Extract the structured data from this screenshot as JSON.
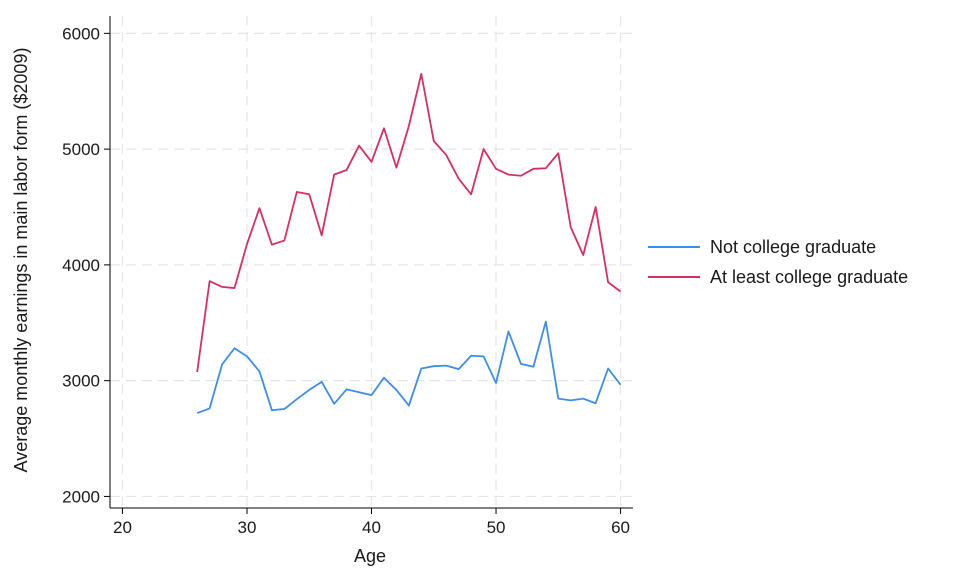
{
  "chart_data": {
    "type": "line",
    "xlabel": "Age",
    "ylabel": "Average monthly earnings in main labor form ($2009)",
    "xlim": [
      19,
      61
    ],
    "ylim": [
      1900,
      6150
    ],
    "xticks": [
      20,
      30,
      40,
      50,
      60
    ],
    "yticks": [
      2000,
      3000,
      4000,
      5000,
      6000
    ],
    "grid": true,
    "legend_position": "right",
    "x": [
      26,
      27,
      28,
      29,
      30,
      31,
      32,
      33,
      34,
      35,
      36,
      37,
      38,
      39,
      40,
      41,
      42,
      43,
      44,
      45,
      46,
      47,
      48,
      49,
      50,
      51,
      52,
      53,
      54,
      55,
      56,
      57,
      58,
      59,
      60
    ],
    "series": [
      {
        "name": "Not college graduate",
        "color": "#3d8ee8",
        "values": [
          2720,
          2760,
          3140,
          3280,
          3210,
          3080,
          2745,
          2755,
          2840,
          2920,
          2990,
          2800,
          2925,
          2900,
          2875,
          3025,
          2920,
          2785,
          3105,
          3125,
          3130,
          3100,
          3215,
          3210,
          2980,
          3425,
          3145,
          3120,
          3510,
          2845,
          2830,
          2845,
          2805,
          3105,
          2965
        ]
      },
      {
        "name": "At least college graduate",
        "color": "#d62f61",
        "values": [
          3075,
          3860,
          3810,
          3800,
          4180,
          4490,
          4175,
          4210,
          4630,
          4610,
          4255,
          4780,
          4820,
          5030,
          4890,
          5180,
          4840,
          5200,
          5650,
          5070,
          4950,
          4745,
          4610,
          5000,
          4830,
          4780,
          4770,
          4830,
          4835,
          4965,
          4325,
          4085,
          4500,
          3850,
          3770
        ]
      }
    ]
  }
}
